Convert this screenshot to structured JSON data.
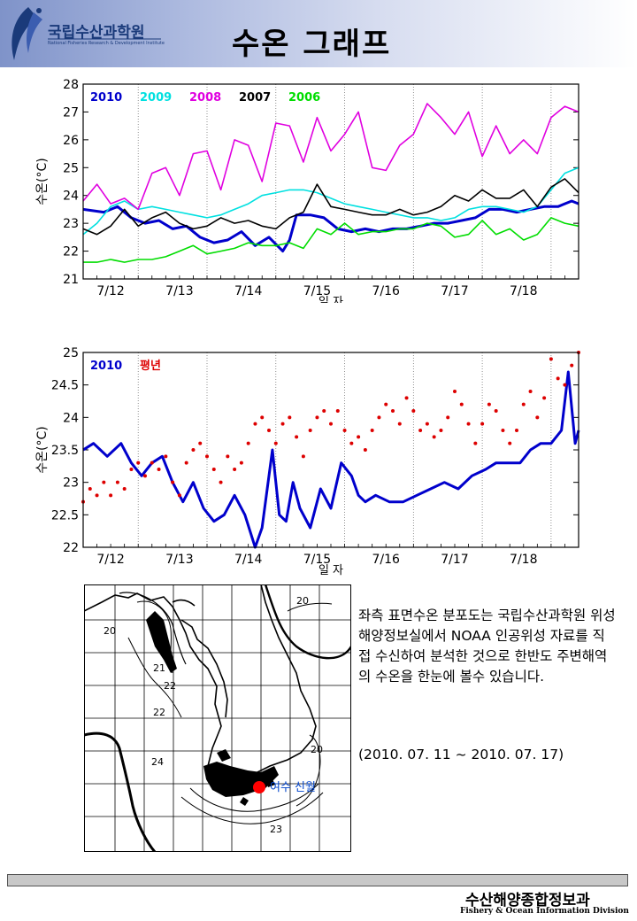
{
  "header": {
    "logo_name": "국립수산과학원",
    "logo_sub": "National Fisheries Research & Development Institute",
    "title": "수온 그래프"
  },
  "chart_data": [
    {
      "type": "line",
      "title": "",
      "xlabel": "일 자",
      "ylabel": "수온(°C)",
      "ylim": [
        21,
        28
      ],
      "xlim": [
        0,
        7.2
      ],
      "yticks": [
        21,
        22,
        23,
        24,
        25,
        26,
        27,
        28
      ],
      "xtick_labels": [
        "7/12",
        "7/13",
        "7/14",
        "7/15",
        "7/16",
        "7/17",
        "7/18"
      ],
      "legend": [
        "2010",
        "2009",
        "2008",
        "2007",
        "2006"
      ],
      "series": [
        {
          "name": "2010",
          "color": "#0000cc",
          "x": [
            0,
            0.3,
            0.5,
            0.7,
            0.9,
            1.1,
            1.3,
            1.5,
            1.7,
            1.9,
            2.1,
            2.3,
            2.5,
            2.7,
            2.9,
            3.0,
            3.1,
            3.3,
            3.5,
            3.7,
            3.9,
            4.1,
            4.3,
            4.5,
            4.7,
            4.9,
            5.1,
            5.3,
            5.5,
            5.7,
            5.9,
            6.1,
            6.3,
            6.5,
            6.7,
            6.9,
            7.1,
            7.2
          ],
          "y": [
            23.5,
            23.4,
            23.6,
            23.2,
            23.0,
            23.1,
            22.8,
            22.9,
            22.5,
            22.3,
            22.4,
            22.7,
            22.2,
            22.5,
            22.0,
            22.4,
            23.3,
            23.3,
            23.2,
            22.8,
            22.7,
            22.8,
            22.7,
            22.8,
            22.8,
            22.9,
            23.0,
            23.0,
            23.1,
            23.2,
            23.5,
            23.5,
            23.4,
            23.5,
            23.6,
            23.6,
            23.8,
            23.7
          ]
        },
        {
          "name": "2009",
          "color": "#00e0e0",
          "x": [
            0,
            0.2,
            0.4,
            0.6,
            0.8,
            1.0,
            1.2,
            1.4,
            1.6,
            1.8,
            2.0,
            2.2,
            2.4,
            2.6,
            2.8,
            3.0,
            3.2,
            3.4,
            3.6,
            3.8,
            4.0,
            4.2,
            4.4,
            4.6,
            4.8,
            5.0,
            5.2,
            5.4,
            5.6,
            5.8,
            6.0,
            6.2,
            6.4,
            6.6,
            6.8,
            7.0,
            7.2
          ],
          "y": [
            22.6,
            23.0,
            23.6,
            23.8,
            23.5,
            23.6,
            23.5,
            23.4,
            23.3,
            23.2,
            23.3,
            23.5,
            23.7,
            24.0,
            24.1,
            24.2,
            24.2,
            24.1,
            23.9,
            23.7,
            23.6,
            23.5,
            23.4,
            23.3,
            23.2,
            23.2,
            23.1,
            23.2,
            23.5,
            23.6,
            23.6,
            23.5,
            23.4,
            23.6,
            24.2,
            24.8,
            25.0
          ]
        },
        {
          "name": "2008",
          "color": "#e000e0",
          "x": [
            0,
            0.2,
            0.4,
            0.6,
            0.8,
            1.0,
            1.2,
            1.4,
            1.6,
            1.8,
            2.0,
            2.2,
            2.4,
            2.6,
            2.8,
            3.0,
            3.2,
            3.4,
            3.6,
            3.8,
            4.0,
            4.2,
            4.4,
            4.6,
            4.8,
            5.0,
            5.2,
            5.4,
            5.6,
            5.8,
            6.0,
            6.2,
            6.4,
            6.6,
            6.8,
            7.0,
            7.2
          ],
          "y": [
            23.8,
            24.4,
            23.7,
            23.9,
            23.5,
            24.8,
            25.0,
            24.0,
            25.5,
            25.6,
            24.2,
            26.0,
            25.8,
            24.5,
            26.6,
            26.5,
            25.2,
            26.8,
            25.6,
            26.2,
            27.0,
            25.0,
            24.9,
            25.8,
            26.2,
            27.3,
            26.8,
            26.2,
            27.0,
            25.4,
            26.5,
            25.5,
            26.0,
            25.5,
            26.8,
            27.2,
            27.0
          ]
        },
        {
          "name": "2007",
          "color": "#000000",
          "x": [
            0,
            0.2,
            0.4,
            0.6,
            0.8,
            1.0,
            1.2,
            1.4,
            1.6,
            1.8,
            2.0,
            2.2,
            2.4,
            2.6,
            2.8,
            3.0,
            3.2,
            3.4,
            3.6,
            3.8,
            4.0,
            4.2,
            4.4,
            4.6,
            4.8,
            5.0,
            5.2,
            5.4,
            5.6,
            5.8,
            6.0,
            6.2,
            6.4,
            6.6,
            6.8,
            7.0,
            7.2
          ],
          "y": [
            22.8,
            22.6,
            22.9,
            23.5,
            22.9,
            23.2,
            23.4,
            23.0,
            22.8,
            22.9,
            23.2,
            23.0,
            23.1,
            22.9,
            22.8,
            23.2,
            23.4,
            24.4,
            23.6,
            23.5,
            23.4,
            23.3,
            23.3,
            23.5,
            23.3,
            23.4,
            23.6,
            24.0,
            23.8,
            24.2,
            23.9,
            23.9,
            24.2,
            23.6,
            24.3,
            24.6,
            24.1
          ]
        },
        {
          "name": "2006",
          "color": "#00dd00",
          "x": [
            0,
            0.2,
            0.4,
            0.6,
            0.8,
            1.0,
            1.2,
            1.4,
            1.6,
            1.8,
            2.0,
            2.2,
            2.4,
            2.6,
            2.8,
            3.0,
            3.2,
            3.4,
            3.6,
            3.8,
            4.0,
            4.2,
            4.4,
            4.6,
            4.8,
            5.0,
            5.2,
            5.4,
            5.6,
            5.8,
            6.0,
            6.2,
            6.4,
            6.6,
            6.8,
            7.0,
            7.2
          ],
          "y": [
            21.6,
            21.6,
            21.7,
            21.6,
            21.7,
            21.7,
            21.8,
            22.0,
            22.2,
            21.9,
            22.0,
            22.1,
            22.3,
            22.2,
            22.2,
            22.3,
            22.1,
            22.8,
            22.6,
            23.0,
            22.6,
            22.7,
            22.7,
            22.8,
            22.8,
            23.0,
            22.9,
            22.5,
            22.6,
            23.1,
            22.6,
            22.8,
            22.4,
            22.6,
            23.2,
            23.0,
            22.9
          ]
        }
      ]
    },
    {
      "type": "line",
      "title": "",
      "xlabel": "일 자",
      "ylabel": "수온(°C)",
      "ylim": [
        22,
        25
      ],
      "xlim": [
        0,
        7.2
      ],
      "yticks": [
        22,
        22.5,
        23,
        23.5,
        24,
        24.5,
        25
      ],
      "xtick_labels": [
        "7/12",
        "7/13",
        "7/14",
        "7/15",
        "7/16",
        "7/17",
        "7/18"
      ],
      "legend": [
        "2010",
        "평년"
      ],
      "series": [
        {
          "name": "2010",
          "color": "#0000cc",
          "style": "line",
          "x": [
            0,
            0.15,
            0.35,
            0.55,
            0.7,
            0.85,
            1.0,
            1.15,
            1.3,
            1.45,
            1.6,
            1.75,
            1.9,
            2.05,
            2.2,
            2.35,
            2.5,
            2.6,
            2.75,
            2.85,
            2.95,
            3.05,
            3.15,
            3.3,
            3.45,
            3.6,
            3.75,
            3.9,
            4.0,
            4.1,
            4.25,
            4.45,
            4.65,
            4.85,
            5.05,
            5.25,
            5.45,
            5.65,
            5.85,
            6.0,
            6.15,
            6.35,
            6.5,
            6.65,
            6.8,
            6.95,
            7.05,
            7.15,
            7.2
          ],
          "y": [
            23.5,
            23.6,
            23.4,
            23.6,
            23.3,
            23.1,
            23.3,
            23.4,
            23.0,
            22.7,
            23.0,
            22.6,
            22.4,
            22.5,
            22.8,
            22.5,
            22.0,
            22.3,
            23.5,
            22.5,
            22.4,
            23.0,
            22.6,
            22.3,
            22.9,
            22.6,
            23.3,
            23.1,
            22.8,
            22.7,
            22.8,
            22.7,
            22.7,
            22.8,
            22.9,
            23.0,
            22.9,
            23.1,
            23.2,
            23.3,
            23.3,
            23.3,
            23.5,
            23.6,
            23.6,
            23.8,
            24.7,
            23.6,
            23.8
          ]
        },
        {
          "name": "평년",
          "color": "#dd0000",
          "style": "dots",
          "x": [
            0,
            0.1,
            0.2,
            0.3,
            0.4,
            0.5,
            0.6,
            0.7,
            0.8,
            0.9,
            1.0,
            1.1,
            1.2,
            1.3,
            1.4,
            1.5,
            1.6,
            1.7,
            1.8,
            1.9,
            2.0,
            2.1,
            2.2,
            2.3,
            2.4,
            2.5,
            2.6,
            2.7,
            2.8,
            2.9,
            3.0,
            3.1,
            3.2,
            3.3,
            3.4,
            3.5,
            3.6,
            3.7,
            3.8,
            3.9,
            4.0,
            4.1,
            4.2,
            4.3,
            4.4,
            4.5,
            4.6,
            4.7,
            4.8,
            4.9,
            5.0,
            5.1,
            5.2,
            5.3,
            5.4,
            5.5,
            5.6,
            5.7,
            5.8,
            5.9,
            6.0,
            6.1,
            6.2,
            6.3,
            6.4,
            6.5,
            6.6,
            6.7,
            6.8,
            6.9,
            7.0,
            7.1,
            7.2
          ],
          "y": [
            22.7,
            22.9,
            22.8,
            23.0,
            22.8,
            23.0,
            22.9,
            23.2,
            23.3,
            23.1,
            23.3,
            23.2,
            23.4,
            23.0,
            22.8,
            23.3,
            23.5,
            23.6,
            23.4,
            23.2,
            23.0,
            23.4,
            23.2,
            23.3,
            23.6,
            23.9,
            24.0,
            23.8,
            23.6,
            23.9,
            24.0,
            23.7,
            23.4,
            23.8,
            24.0,
            24.1,
            23.9,
            24.1,
            23.8,
            23.6,
            23.7,
            23.5,
            23.8,
            24.0,
            24.2,
            24.1,
            23.9,
            24.3,
            24.1,
            23.8,
            23.9,
            23.7,
            23.8,
            24.0,
            24.4,
            24.2,
            23.9,
            23.6,
            23.9,
            24.2,
            24.1,
            23.8,
            23.6,
            23.8,
            24.2,
            24.4,
            24.0,
            24.3,
            24.9,
            24.6,
            24.5,
            24.8,
            25.0
          ]
        }
      ]
    }
  ],
  "map": {
    "contours": [
      "20",
      "22",
      "21",
      "22",
      "24",
      "20",
      "20",
      "23"
    ],
    "station_label": "여수 신월"
  },
  "description": "좌측 표면수온 분포도는 국립수산과학원 위성해양정보실에서 NOAA 인공위성 자료를 직접 수신하여 분석한 것으로  한반도 주변해역의 수온을 한눈에 볼수 있습니다.",
  "date_range": "(2010. 07. 11 ~ 2010. 07. 17)",
  "footer": {
    "title_ko": "수산해양종합정보과",
    "title_en": "Fishery & Ocean Information Division"
  }
}
